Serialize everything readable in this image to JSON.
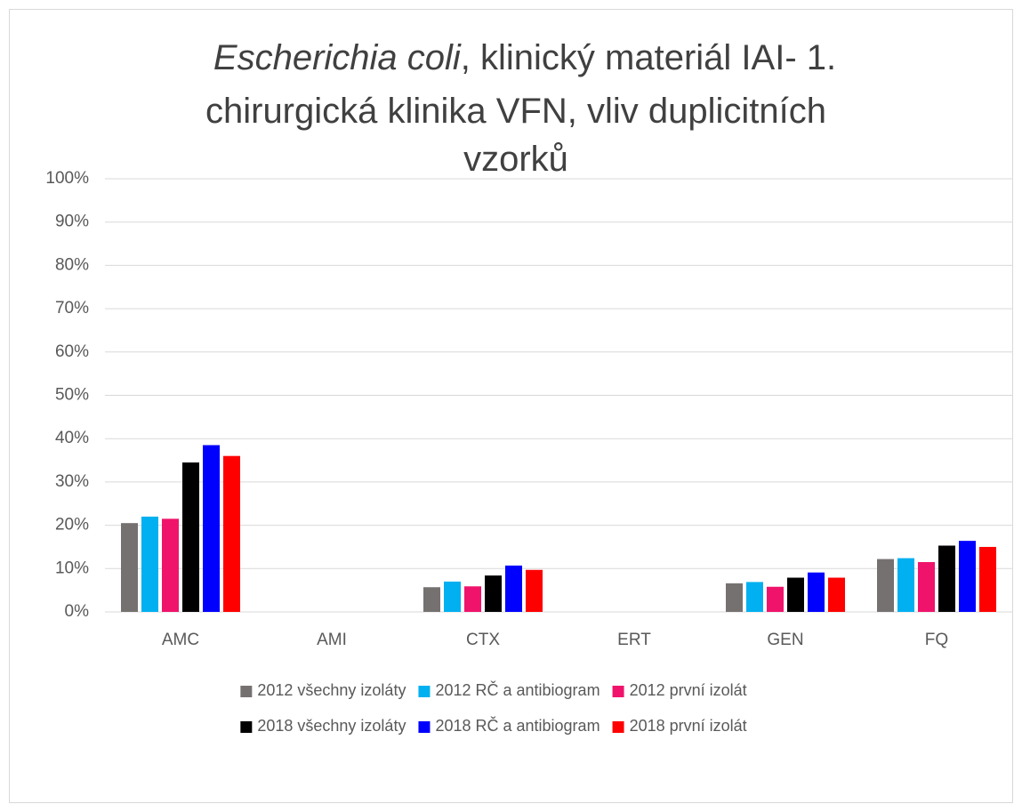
{
  "chart_data": {
    "type": "bar",
    "title": [
      "Escherichia coli",
      ", klinický materiál IAI- 1.",
      "chirurgická klinika VFN, vliv duplicitních",
      "vzorků"
    ],
    "categories": [
      "AMC",
      "AMI",
      "CTX",
      "ERT",
      "GEN",
      "FQ"
    ],
    "series": [
      {
        "name": "2012 všechny izoláty",
        "color": "#767171",
        "values": [
          20.5,
          0,
          5.7,
          0,
          6.6,
          12.2
        ]
      },
      {
        "name": "2012 RČ a antibiogram",
        "color": "#00b0f0",
        "values": [
          22,
          0,
          7,
          0,
          6.9,
          12.4
        ]
      },
      {
        "name": "2012 první izolát",
        "color": "#f0136b",
        "values": [
          21.5,
          0,
          5.9,
          0,
          5.8,
          11.5
        ]
      },
      {
        "name": "2018 všechny izoláty",
        "color": "#000000",
        "values": [
          34.5,
          0,
          8.4,
          0,
          7.9,
          15.3
        ]
      },
      {
        "name": "2018 RČ a antibiogram",
        "color": "#0000ff",
        "values": [
          38.5,
          0,
          10.7,
          0,
          9.1,
          16.4
        ]
      },
      {
        "name": "2018 první izolát",
        "color": "#ff0000",
        "values": [
          36,
          0,
          9.7,
          0,
          7.9,
          15
        ]
      }
    ],
    "ylim": [
      0,
      100
    ],
    "yticks": [
      {
        "value": 0,
        "label": "0%"
      },
      {
        "value": 10,
        "label": "10%"
      },
      {
        "value": 20,
        "label": "20%"
      },
      {
        "value": 30,
        "label": "30%"
      },
      {
        "value": 40,
        "label": "40%"
      },
      {
        "value": 50,
        "label": "50%"
      },
      {
        "value": 60,
        "label": "60%"
      },
      {
        "value": 70,
        "label": "70%"
      },
      {
        "value": 80,
        "label": "80%"
      },
      {
        "value": 90,
        "label": "90%"
      },
      {
        "value": 100,
        "label": "100%"
      }
    ],
    "grid": true,
    "legend": "bottom"
  }
}
